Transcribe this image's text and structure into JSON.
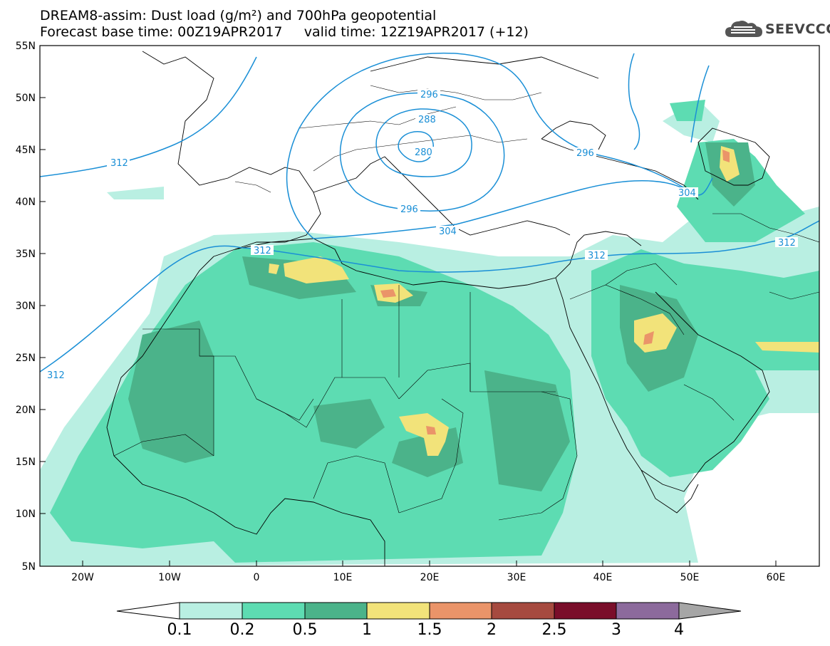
{
  "title": {
    "line1": "DREAM8-assim: Dust load (g/m²) and 700hPa geopotential",
    "line2": "Forecast base time: 00Z19APR2017     valid time: 12Z19APR2017 (+12)"
  },
  "logo": {
    "text": "SEEVCCC",
    "icon": "cloud-logo-icon"
  },
  "map": {
    "lat_labels": [
      "55N",
      "50N",
      "45N",
      "40N",
      "35N",
      "30N",
      "25N",
      "20N",
      "15N",
      "10N",
      "5N"
    ],
    "lon_labels": [
      "20W",
      "10W",
      "0",
      "10E",
      "20E",
      "30E",
      "40E",
      "50E",
      "60E"
    ],
    "contour_labels": [
      "312",
      "296",
      "288",
      "280",
      "296",
      "304",
      "296",
      "304",
      "312",
      "312",
      "312",
      "312"
    ]
  },
  "colorbar": {
    "labels": [
      "0.1",
      "0.2",
      "0.5",
      "1",
      "1.5",
      "2",
      "2.5",
      "3",
      "4"
    ],
    "colors": [
      "#b9efe2",
      "#5ddcb2",
      "#4bb38a",
      "#f2e37a",
      "#ea9469",
      "#a64a3f",
      "#7a0e2a",
      "#8c6a9c",
      "#a6a6a6"
    ],
    "arrow_left_color": "#ffffff"
  },
  "colors": {
    "contour": "#1a8fd6",
    "border": "#000000"
  }
}
